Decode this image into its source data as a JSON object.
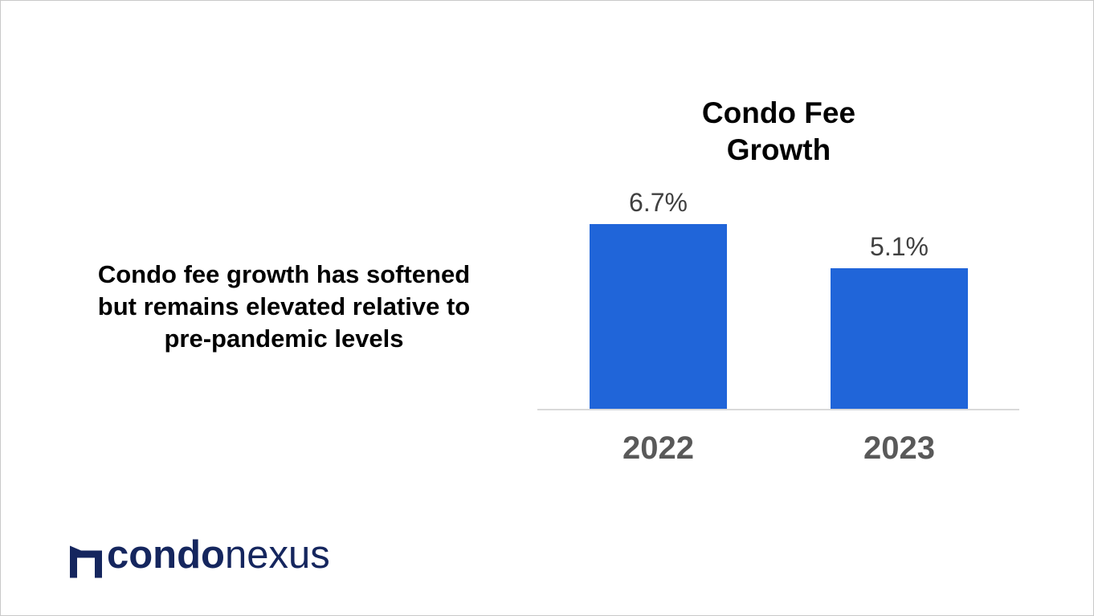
{
  "message": {
    "lines": [
      "Condo fee growth has softened",
      "but remains elevated relative to",
      "pre-pandemic levels"
    ]
  },
  "chart_data": {
    "type": "bar",
    "title": "Condo Fee Growth",
    "title_lines": [
      "Condo Fee",
      "Growth"
    ],
    "categories": [
      "2022",
      "2023"
    ],
    "values": [
      6.7,
      5.1
    ],
    "value_labels": [
      "6.7%",
      "5.1%"
    ],
    "unit": "%",
    "ylim": [
      0,
      7
    ],
    "grid": false,
    "legend": false,
    "bar_color": "#2065d9",
    "axis_line_color": "#d9d9d9",
    "value_label_color": "#404040",
    "category_label_color": "#595959",
    "title_color": "#000000"
  },
  "logo": {
    "text_bold": "condo",
    "text_light": "nexus",
    "color": "#15265e",
    "mark": "condonexus-roof-mark"
  }
}
